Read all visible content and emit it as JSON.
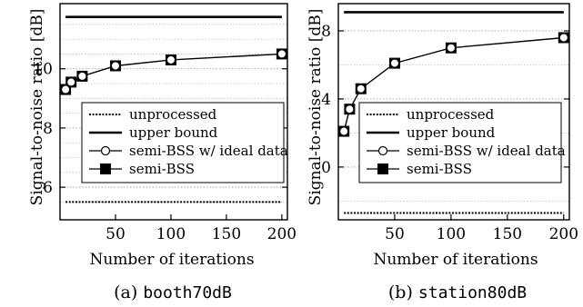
{
  "chart_data": [
    {
      "type": "line",
      "caption_prefix": "(a) ",
      "caption_name": "booth70dB",
      "xlabel": "Number of iterations",
      "ylabel": "Signal-to-noise ratio [dB]",
      "xlim": [
        0,
        205
      ],
      "ylim": [
        4.9,
        12.2
      ],
      "xticks": [
        50,
        100,
        150,
        200
      ],
      "yticks": [
        6,
        8,
        10
      ],
      "minor_grid_y": [
        5.5,
        6.5,
        7,
        7.5,
        8.5,
        9,
        9.5,
        10.5,
        11,
        11.5
      ],
      "grid": true,
      "legend_position": "lower-center",
      "series": [
        {
          "name": "unprocessed",
          "style": "dotted",
          "x": [
            5,
            200
          ],
          "y": [
            5.5,
            5.5
          ]
        },
        {
          "name": "upper bound",
          "style": "solid",
          "x": [
            5,
            200
          ],
          "y": [
            11.75,
            11.75
          ]
        },
        {
          "name": "semi-BSS w/ ideal data",
          "style": "open-circle",
          "x": [
            5,
            10,
            20,
            50,
            100,
            200
          ],
          "y": [
            9.3,
            9.55,
            9.75,
            10.1,
            10.3,
            10.5
          ]
        },
        {
          "name": "semi-BSS",
          "style": "filled-square",
          "x": [
            5,
            10,
            20,
            50,
            100,
            200
          ],
          "y": [
            9.3,
            9.55,
            9.75,
            10.1,
            10.3,
            10.5
          ]
        }
      ]
    },
    {
      "type": "line",
      "caption_prefix": "(b) ",
      "caption_name": "station80dB",
      "xlabel": "Number of iterations",
      "ylabel": "Signal-to-noise ratio [dB]",
      "xlim": [
        0,
        205
      ],
      "ylim": [
        -3.1,
        9.6
      ],
      "xticks": [
        50,
        100,
        150,
        200
      ],
      "yticks": [
        0,
        4,
        8
      ],
      "minor_grid_y": [
        -2,
        2,
        6
      ],
      "grid": true,
      "legend_position": "lower-center",
      "series": [
        {
          "name": "unprocessed",
          "style": "dotted",
          "x": [
            5,
            200
          ],
          "y": [
            -2.7,
            -2.7
          ]
        },
        {
          "name": "upper bound",
          "style": "solid",
          "x": [
            5,
            200
          ],
          "y": [
            9.1,
            9.1
          ]
        },
        {
          "name": "semi-BSS w/ ideal data",
          "style": "open-circle",
          "x": [
            5,
            10,
            20,
            50,
            100,
            200
          ],
          "y": [
            2.1,
            3.4,
            4.6,
            6.1,
            7.0,
            7.6
          ]
        },
        {
          "name": "semi-BSS",
          "style": "filled-square",
          "x": [
            5,
            10,
            20,
            50,
            100,
            200
          ],
          "y": [
            2.1,
            3.4,
            4.6,
            6.1,
            7.0,
            7.6
          ]
        }
      ]
    }
  ]
}
